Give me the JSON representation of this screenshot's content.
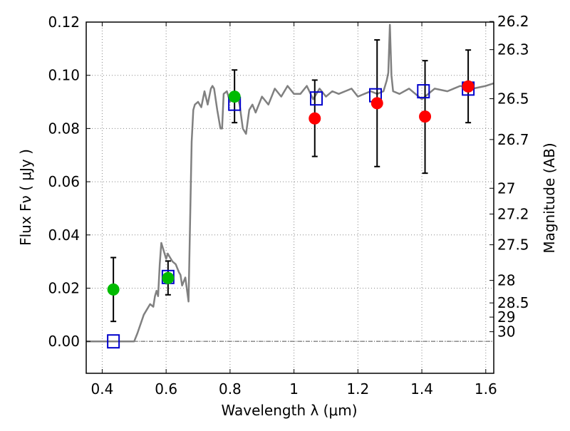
{
  "chart_data": {
    "type": "scatter",
    "xlabel": "Wavelength  λ (μm)",
    "ylabel": "Flux  Fν  ( μJy )",
    "ylabel_right": "Magnitude (AB)",
    "xlim": [
      0.35,
      1.625
    ],
    "ylim": [
      -0.012,
      0.12
    ],
    "grid": true,
    "x_ticks": [
      {
        "value": 0.4,
        "label": "0.4"
      },
      {
        "value": 0.6,
        "label": "0.6"
      },
      {
        "value": 0.8,
        "label": "0.8"
      },
      {
        "value": 1.0,
        "label": "1"
      },
      {
        "value": 1.2,
        "label": "1.2"
      },
      {
        "value": 1.4,
        "label": "1.4"
      },
      {
        "value": 1.6,
        "label": "1.6"
      }
    ],
    "y_ticks": [
      {
        "value": 0.0,
        "label": "0.00"
      },
      {
        "value": 0.02,
        "label": "0.02"
      },
      {
        "value": 0.04,
        "label": "0.04"
      },
      {
        "value": 0.06,
        "label": "0.06"
      },
      {
        "value": 0.08,
        "label": "0.08"
      },
      {
        "value": 0.1,
        "label": "0.10"
      },
      {
        "value": 0.12,
        "label": "0.12"
      }
    ],
    "y_right_ticks": [
      {
        "value": 26.2,
        "label": "26.2"
      },
      {
        "value": 26.3,
        "label": "26.3"
      },
      {
        "value": 26.5,
        "label": "26.5"
      },
      {
        "value": 26.7,
        "label": "26.7"
      },
      {
        "value": 27.0,
        "label": "27"
      },
      {
        "value": 27.2,
        "label": "27.2"
      },
      {
        "value": 27.5,
        "label": "27.5"
      },
      {
        "value": 28.0,
        "label": "28"
      },
      {
        "value": 28.5,
        "label": "28.5"
      },
      {
        "value": 29.0,
        "label": "29"
      },
      {
        "value": 30.0,
        "label": "30"
      }
    ],
    "zero_line": 0.0,
    "colors": {
      "model": "#808080",
      "green_points": "#00bb00",
      "red_points": "#ff0000",
      "squares": "#0000cc",
      "errorbars": "#000000",
      "grid": "#888888"
    },
    "series": [
      {
        "kind": "line",
        "x": [
          0.35,
          0.5,
          0.51,
          0.53,
          0.55,
          0.56,
          0.565,
          0.57,
          0.575,
          0.58,
          0.585,
          0.59,
          0.6,
          0.605,
          0.61,
          0.62,
          0.63,
          0.64,
          0.645,
          0.65,
          0.66,
          0.67,
          0.675,
          0.68,
          0.685,
          0.69,
          0.7,
          0.71,
          0.72,
          0.73,
          0.74,
          0.745,
          0.75,
          0.76,
          0.77,
          0.775,
          0.78,
          0.79,
          0.8,
          0.81,
          0.82,
          0.83,
          0.84,
          0.85,
          0.86,
          0.87,
          0.88,
          0.9,
          0.92,
          0.94,
          0.96,
          0.98,
          1.0,
          1.02,
          1.04,
          1.06,
          1.08,
          1.1,
          1.12,
          1.14,
          1.16,
          1.18,
          1.2,
          1.22,
          1.24,
          1.26,
          1.28,
          1.29,
          1.295,
          1.3,
          1.305,
          1.31,
          1.33,
          1.36,
          1.4,
          1.44,
          1.48,
          1.52,
          1.56,
          1.6,
          1.625
        ],
        "y": [
          0.0,
          0.0,
          0.003,
          0.01,
          0.014,
          0.013,
          0.017,
          0.019,
          0.017,
          0.029,
          0.037,
          0.035,
          0.031,
          0.033,
          0.032,
          0.03,
          0.029,
          0.026,
          0.025,
          0.021,
          0.024,
          0.015,
          0.045,
          0.075,
          0.087,
          0.089,
          0.09,
          0.088,
          0.094,
          0.089,
          0.095,
          0.096,
          0.095,
          0.087,
          0.08,
          0.08,
          0.093,
          0.094,
          0.09,
          0.092,
          0.093,
          0.089,
          0.08,
          0.078,
          0.087,
          0.089,
          0.086,
          0.092,
          0.089,
          0.095,
          0.092,
          0.096,
          0.093,
          0.093,
          0.096,
          0.091,
          0.095,
          0.092,
          0.094,
          0.093,
          0.094,
          0.095,
          0.092,
          0.093,
          0.094,
          0.093,
          0.094,
          0.098,
          0.101,
          0.119,
          0.1,
          0.094,
          0.093,
          0.095,
          0.091,
          0.095,
          0.094,
          0.096,
          0.095,
          0.096,
          0.097
        ]
      },
      {
        "kind": "scatter",
        "marker": "circle-green",
        "x": [
          0.435,
          0.606,
          0.814
        ],
        "y": [
          0.0195,
          0.0238,
          0.092
        ],
        "yerr_low": [
          0.0075,
          0.0175,
          0.0822
        ],
        "yerr_high": [
          0.0315,
          0.0302,
          0.102
        ]
      },
      {
        "kind": "scatter",
        "marker": "circle-red",
        "x": [
          1.065,
          1.26,
          1.41,
          1.545
        ],
        "y": [
          0.0838,
          0.0895,
          0.0845,
          0.0958
        ],
        "yerr_low": [
          0.0695,
          0.0657,
          0.0632,
          0.0822
        ],
        "yerr_high": [
          0.0982,
          0.1133,
          0.1055,
          0.1095
        ]
      },
      {
        "kind": "scatter",
        "marker": "square-blue",
        "x": [
          0.435,
          0.606,
          0.814,
          1.07,
          1.255,
          1.405,
          1.545
        ],
        "y": [
          0.0,
          0.0242,
          0.0893,
          0.0913,
          0.0925,
          0.094,
          0.095
        ]
      }
    ]
  }
}
